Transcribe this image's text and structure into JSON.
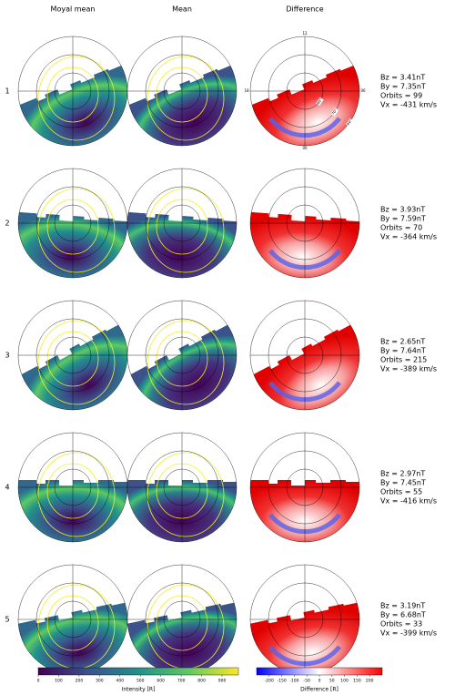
{
  "columns": [
    "Moyal mean",
    "Mean",
    "Difference"
  ],
  "rows": [
    {
      "label": "1",
      "params": [
        "Bz = 3.41nT",
        "By = 7.35nT",
        "Orbits = 99",
        "Vx = -431 km/s"
      ]
    },
    {
      "label": "2",
      "params": [
        "Bz = 3.93nT",
        "By = 7.59nT",
        "Orbits = 70",
        "Vx = -364 km/s"
      ]
    },
    {
      "label": "3",
      "params": [
        "Bz = 2.65nT",
        "By = 7.64nT",
        "Orbits = 215",
        "Vx = -389 km/s"
      ]
    },
    {
      "label": "4",
      "params": [
        "Bz = 2.97nT",
        "By = 7.45nT",
        "Orbits = 55",
        "Vx = -416 km/s"
      ]
    },
    {
      "label": "5",
      "params": [
        "Bz = 3.19nT",
        "By = 6.68nT",
        "Orbits = 33",
        "Vx = -399 km/s"
      ]
    }
  ],
  "polar_labels": {
    "top": "12",
    "left": "18",
    "right": "06",
    "bottom": "00",
    "rings": [
      "80°",
      "70°",
      "60°"
    ]
  },
  "colorbars": [
    {
      "label": "Intensity [R]",
      "lim": [
        0,
        980
      ],
      "ticks": [
        0,
        100,
        200,
        300,
        400,
        500,
        600,
        700,
        800,
        900
      ]
    },
    {
      "label": "Difference [R]",
      "lim": [
        -250,
        250
      ],
      "ticks": [
        -200,
        -150,
        -100,
        -50,
        0,
        50,
        100,
        150,
        200
      ]
    }
  ]
}
